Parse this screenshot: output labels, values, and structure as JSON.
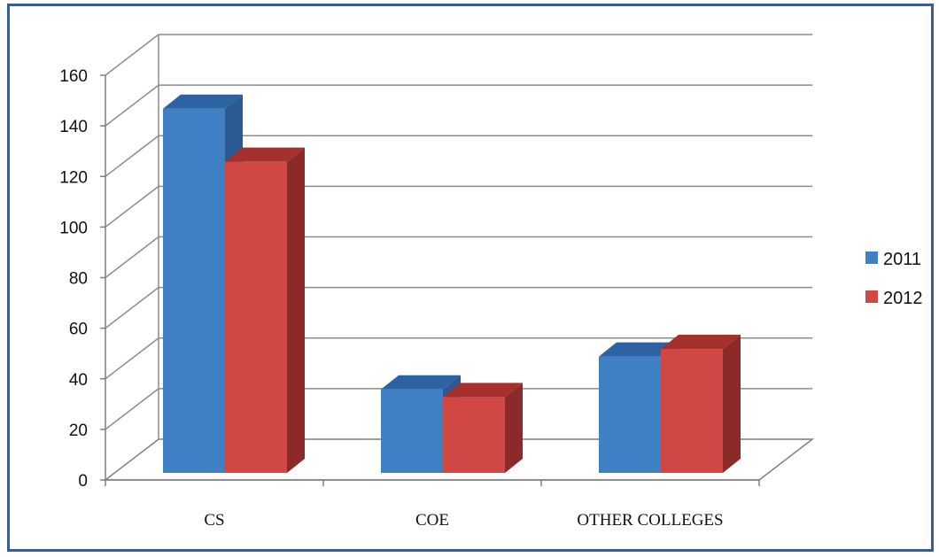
{
  "chart_data": {
    "type": "bar",
    "style": "3d-clustered-column",
    "categories": [
      "CS",
      "COE",
      "OTHER COLLEGES"
    ],
    "series": [
      {
        "name": "2011",
        "color": "#3f7fc4",
        "side_color": "#2a5a91",
        "top_color": "#2e63a3",
        "values": [
          144,
          33,
          46
        ]
      },
      {
        "name": "2012",
        "color": "#d04743",
        "side_color": "#8c2a29",
        "top_color": "#a5302e",
        "values": [
          123,
          30,
          49
        ]
      }
    ],
    "ylim": [
      0,
      160
    ],
    "yticks": [
      "0",
      "20",
      "40",
      "60",
      "80",
      "100",
      "120",
      "140",
      "160"
    ],
    "grid": true,
    "legend": "right",
    "title": "",
    "xlabel": "",
    "ylabel": ""
  }
}
